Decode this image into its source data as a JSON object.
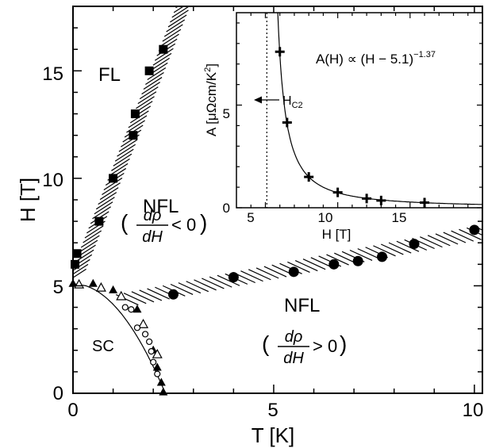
{
  "chart_data": [
    {
      "type": "scatter",
      "xlabel": "T [K]",
      "ylabel": "H [T]",
      "xlim": [
        0,
        10.2
      ],
      "ylim": [
        0,
        18
      ],
      "xticks": [
        0,
        5,
        10
      ],
      "yticks": [
        0,
        5,
        10,
        15
      ],
      "grid": false,
      "series": [
        {
          "marker": "filled-square",
          "x": [
            0.05,
            0.1,
            0.65,
            1.0,
            1.5,
            1.55,
            1.9,
            2.25
          ],
          "y": [
            6.0,
            6.5,
            8.0,
            10.0,
            12.0,
            13.0,
            15.0,
            16.0
          ]
        },
        {
          "marker": "filled-circle",
          "x": [
            2.5,
            4.0,
            5.5,
            6.5,
            7.1,
            7.7,
            8.5,
            10.0
          ],
          "y": [
            4.6,
            5.4,
            5.65,
            6.0,
            6.15,
            6.35,
            6.95,
            7.6
          ]
        },
        {
          "marker": "filled-triangle",
          "x": [
            0.0,
            0.5,
            1.0,
            1.6,
            2.0,
            2.1,
            2.2,
            2.25
          ],
          "y": [
            5.1,
            5.1,
            4.8,
            3.9,
            2.0,
            1.2,
            0.5,
            0.05
          ]
        },
        {
          "marker": "open-triangle",
          "x": [
            0.15,
            0.7,
            1.2,
            1.75,
            2.1
          ],
          "y": [
            5.05,
            4.9,
            4.5,
            3.2,
            1.8
          ]
        },
        {
          "marker": "open-circle",
          "x": [
            1.3,
            1.45,
            1.6,
            1.8,
            1.9,
            1.95,
            2.0,
            2.1
          ],
          "y": [
            4.0,
            3.9,
            3.05,
            2.75,
            2.4,
            1.95,
            1.45,
            0.9
          ]
        }
      ],
      "annotations": {
        "fl": "FL",
        "nfl_upper": "NFL",
        "nfl_lower": "NFL",
        "sc": "SC",
        "drho": "dρ",
        "dh": "dH",
        "lt_zero": "< 0",
        "gt_zero": "> 0",
        "paren_open": "(",
        "paren_close": ")"
      }
    },
    {
      "type": "scatter",
      "xlabel": "H [T]",
      "ylabel": "A [μΩcm/K²]",
      "xlim": [
        3,
        20
      ],
      "ylim": [
        0,
        9.5
      ],
      "xticks": [
        5,
        10,
        15
      ],
      "yticks": [
        0,
        5
      ],
      "series": [
        {
          "marker": "plus",
          "x": [
            6.0,
            6.5,
            8.0,
            10.0,
            12.0,
            13.0,
            16.0
          ],
          "y": [
            7.6,
            4.15,
            1.5,
            0.75,
            0.45,
            0.35,
            0.25
          ]
        }
      ],
      "fit": {
        "form": "A(H) ∝ (H − 5.1)^−1.37",
        "h0": 5.1,
        "exponent": -1.37
      },
      "hc2_line": 5.1,
      "annotations": {
        "formula_main": "A(H) ∝ (H − 5.1)",
        "formula_exp": "−1.37",
        "hc2_label": "H",
        "hc2_sub": "C2",
        "ylabel_main": "A [μΩcm/K",
        "ylabel_sup": "2",
        "ylabel_end": "]"
      }
    }
  ]
}
